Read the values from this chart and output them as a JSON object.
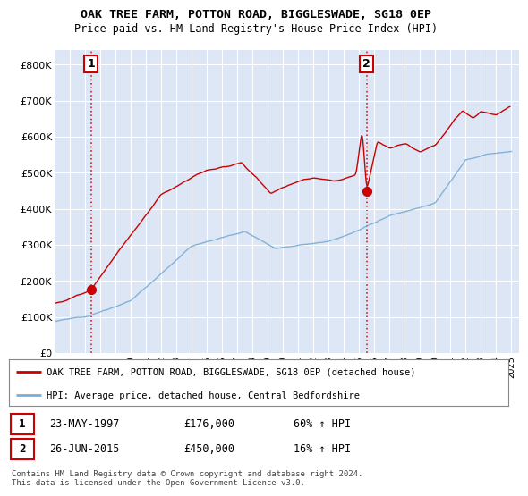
{
  "title_line1": "OAK TREE FARM, POTTON ROAD, BIGGLESWADE, SG18 0EP",
  "title_line2": "Price paid vs. HM Land Registry's House Price Index (HPI)",
  "xlim_start": 1995.0,
  "xlim_end": 2025.5,
  "ylim_min": 0,
  "ylim_max": 840000,
  "yticks": [
    0,
    100000,
    200000,
    300000,
    400000,
    500000,
    600000,
    700000,
    800000
  ],
  "ytick_labels": [
    "£0",
    "£100K",
    "£200K",
    "£300K",
    "£400K",
    "£500K",
    "£600K",
    "£700K",
    "£800K"
  ],
  "xticks": [
    1995,
    1996,
    1997,
    1998,
    1999,
    2000,
    2001,
    2002,
    2003,
    2004,
    2005,
    2006,
    2007,
    2008,
    2009,
    2010,
    2011,
    2012,
    2013,
    2014,
    2015,
    2016,
    2017,
    2018,
    2019,
    2020,
    2021,
    2022,
    2023,
    2024,
    2025
  ],
  "bg_color": "#dce6f5",
  "grid_color": "#ffffff",
  "red_line_color": "#cc0000",
  "blue_line_color": "#7aadd4",
  "sale1_x": 1997.39,
  "sale1_y": 176000,
  "sale2_x": 2015.49,
  "sale2_y": 450000,
  "legend_label1": "OAK TREE FARM, POTTON ROAD, BIGGLESWADE, SG18 0EP (detached house)",
  "legend_label2": "HPI: Average price, detached house, Central Bedfordshire",
  "note1_date": "23-MAY-1997",
  "note1_price": "£176,000",
  "note1_hpi": "60% ↑ HPI",
  "note2_date": "26-JUN-2015",
  "note2_price": "£450,000",
  "note2_hpi": "16% ↑ HPI",
  "footer": "Contains HM Land Registry data © Crown copyright and database right 2024.\nThis data is licensed under the Open Government Licence v3.0."
}
